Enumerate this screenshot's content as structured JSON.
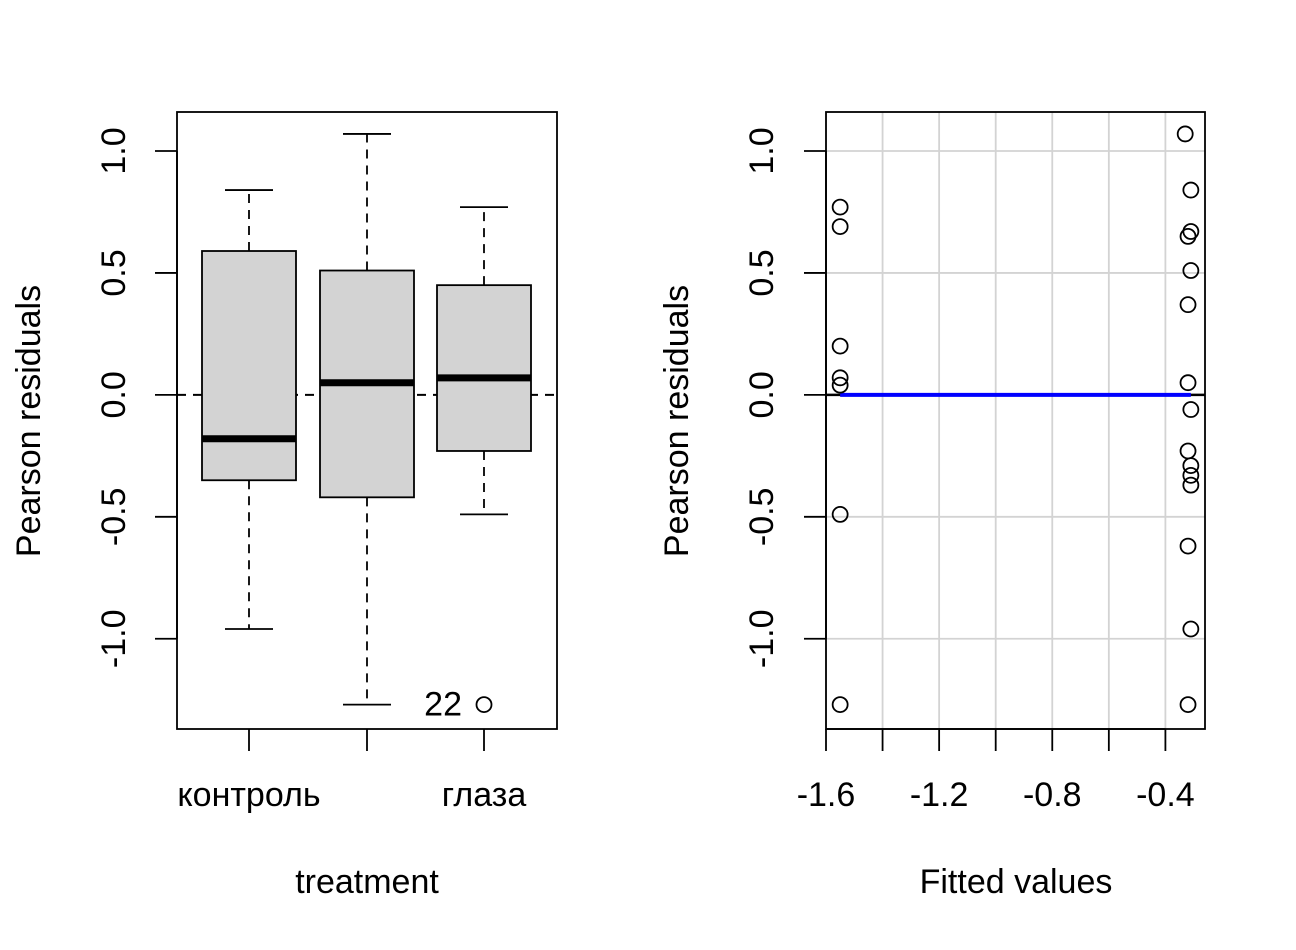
{
  "chart_data": [
    {
      "type": "box",
      "xlabel": "treatment",
      "ylabel": "Pearson residuals",
      "ylim": [
        -1.37,
        1.16
      ],
      "yticks": [
        -1.0,
        -0.5,
        0.0,
        0.5,
        1.0
      ],
      "ytick_labels": [
        "-1.0",
        "-0.5",
        "0.0",
        "0.5",
        "1.0"
      ],
      "categories": [
        "контроль",
        "",
        "глаза"
      ],
      "boxes": [
        {
          "whisker_low": -0.96,
          "q1": -0.35,
          "median": -0.18,
          "q3": 0.59,
          "whisker_high": 0.84
        },
        {
          "whisker_low": -1.27,
          "q1": -0.42,
          "median": 0.05,
          "q3": 0.51,
          "whisker_high": 1.07
        },
        {
          "whisker_low": -0.49,
          "q1": -0.23,
          "median": 0.07,
          "q3": 0.45,
          "whisker_high": 0.77
        }
      ],
      "outliers": [
        {
          "box": 3,
          "value": -1.27,
          "label": "22"
        }
      ],
      "reference_line": 0.0,
      "grid": false
    },
    {
      "type": "scatter",
      "xlabel": "Fitted values",
      "ylabel": "Pearson residuals",
      "xlim": [
        -1.6,
        -0.26
      ],
      "ylim": [
        -1.37,
        1.16
      ],
      "xticks": [
        -1.6,
        -1.4,
        -1.2,
        -1.0,
        -0.8,
        -0.6,
        -0.4
      ],
      "xtick_labels": [
        "-1.6",
        "",
        "-1.2",
        "",
        "-0.8",
        "",
        "-0.4"
      ],
      "yticks": [
        -1.0,
        -0.5,
        0.0,
        0.5,
        1.0
      ],
      "ytick_labels": [
        "-1.0",
        "-0.5",
        "0.0",
        "0.5",
        "1.0"
      ],
      "grid": true,
      "points": [
        [
          -1.55,
          0.77
        ],
        [
          -1.55,
          0.69
        ],
        [
          -1.55,
          0.2
        ],
        [
          -1.55,
          0.07
        ],
        [
          -1.55,
          0.04
        ],
        [
          -1.55,
          -0.49
        ],
        [
          -1.55,
          -1.27
        ],
        [
          -0.33,
          1.07
        ],
        [
          -0.31,
          0.84
        ],
        [
          -0.31,
          0.67
        ],
        [
          -0.32,
          0.65
        ],
        [
          -0.31,
          0.51
        ],
        [
          -0.32,
          0.37
        ],
        [
          -0.32,
          0.05
        ],
        [
          -0.31,
          -0.06
        ],
        [
          -0.32,
          -0.23
        ],
        [
          -0.31,
          -0.29
        ],
        [
          -0.31,
          -0.33
        ],
        [
          -0.31,
          -0.37
        ],
        [
          -0.32,
          -0.62
        ],
        [
          -0.31,
          -0.96
        ],
        [
          -0.32,
          -1.27
        ]
      ],
      "smooth_line": {
        "color": "#0000ff",
        "points": [
          [
            -1.55,
            0.0
          ],
          [
            -0.31,
            0.0
          ]
        ]
      },
      "reference_line": 0.0,
      "colors": {
        "grid": "#d3d3d3",
        "box_fill": "#d3d3d3"
      }
    }
  ]
}
